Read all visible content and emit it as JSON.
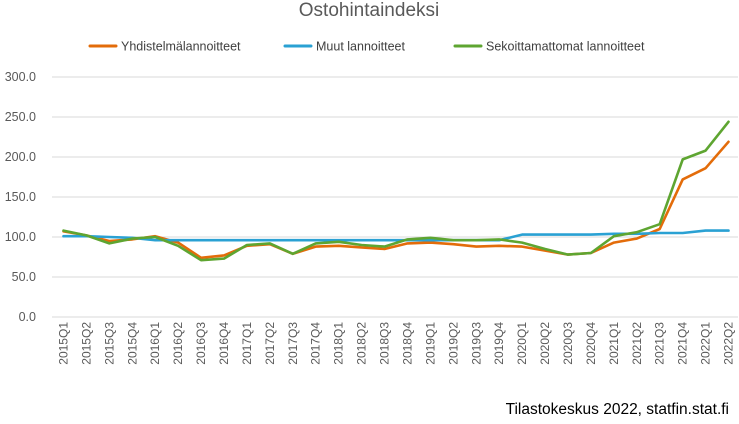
{
  "chart_data": {
    "type": "line",
    "title": "Ostohintaindeksi",
    "source": "Tilastokeskus 2022, statfin.stat.fi",
    "ylim": [
      0,
      300
    ],
    "ytick_labels": [
      "0.0",
      "50.0",
      "100.0",
      "150.0",
      "200.0",
      "250.0",
      "300.0"
    ],
    "ytick_values": [
      0,
      50,
      100,
      150,
      200,
      250,
      300
    ],
    "grid": true,
    "legend_position": "top",
    "categories": [
      "2015Q1",
      "2015Q2",
      "2015Q3",
      "2015Q4",
      "2016Q1",
      "2016Q2",
      "2016Q3",
      "2016Q4",
      "2017Q1",
      "2017Q2",
      "2017Q3",
      "2017Q4",
      "2018Q1",
      "2018Q2",
      "2018Q3",
      "2018Q4",
      "2019Q1",
      "2019Q2",
      "2019Q3",
      "2019Q4",
      "2020Q1",
      "2020Q2",
      "2020Q3",
      "2020Q4",
      "2021Q1",
      "2021Q2",
      "2021Q3",
      "2021Q4",
      "2022Q1",
      "2022Q2"
    ],
    "series": [
      {
        "name": "Yhdistelmälannoitteet",
        "color": "#e36c0a",
        "values": [
          107,
          102,
          95,
          97,
          101,
          93,
          74,
          77,
          89,
          91,
          79,
          88,
          89,
          87,
          85,
          92,
          93,
          91,
          88,
          89,
          88,
          83,
          78,
          80,
          93,
          98,
          110,
          172,
          186,
          219
        ]
      },
      {
        "name": "Muut lannoitteet",
        "color": "#2aa1d3",
        "values": [
          101,
          101,
          100,
          99,
          96,
          96,
          96,
          96,
          96,
          96,
          96,
          96,
          96,
          96,
          96,
          96,
          96,
          96,
          96,
          96,
          103,
          103,
          103,
          103,
          104,
          104,
          105,
          105,
          108,
          108
        ]
      },
      {
        "name": "Sekoittamattomat lannoitteet",
        "color": "#5ea531",
        "values": [
          108,
          102,
          92,
          98,
          100,
          89,
          71,
          73,
          90,
          92,
          79,
          92,
          94,
          90,
          88,
          97,
          99,
          96,
          96,
          97,
          93,
          85,
          78,
          80,
          101,
          106,
          116,
          197,
          208,
          244
        ]
      }
    ]
  }
}
